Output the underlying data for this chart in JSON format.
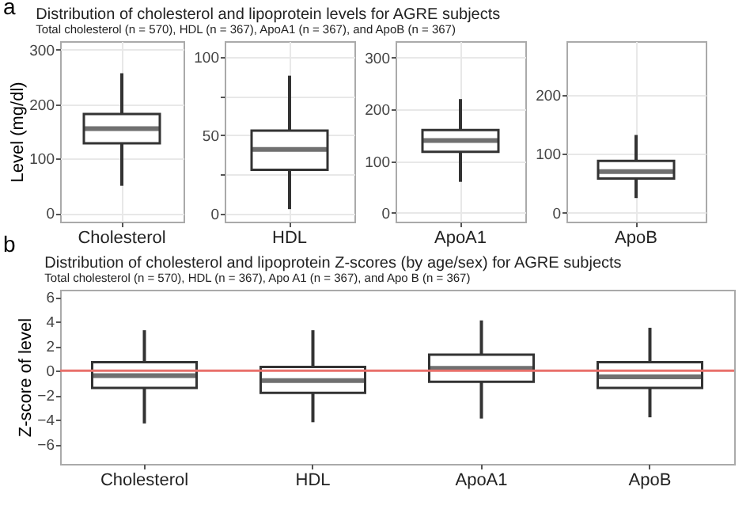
{
  "chart_data": [
    {
      "type": "box",
      "title": "Distribution of cholesterol and lipoprotein levels for AGRE subjects",
      "subtitle": "Total cholesterol (n = 570), HDL (n = 367), ApoA1 (n = 367), and ApoB (n = 367)",
      "annotations": [
        "a"
      ],
      "ylabel": "Level (mg/dl)",
      "categories": [
        "Cholesterol"
      ],
      "ylim": [
        -16,
        316
      ],
      "yticks": [
        0,
        100,
        200,
        300
      ],
      "grid": true,
      "boxes": [
        {
          "low": 50,
          "q1": 128,
          "median": 155,
          "q3": 182,
          "high": 257
        }
      ]
    },
    {
      "type": "box",
      "categories": [
        "HDL"
      ],
      "ylim": [
        -5,
        110
      ],
      "yticks": [
        0,
        {
          "value": 25,
          "label": null
        },
        50,
        {
          "value": 75,
          "label": null
        },
        100
      ],
      "grid": true,
      "boxes": [
        {
          "low": 3,
          "q1": 28,
          "median": 41,
          "q3": 53,
          "high": 88
        }
      ]
    },
    {
      "type": "box",
      "categories": [
        "ApoA1"
      ],
      "ylim": [
        -17,
        332
      ],
      "yticks": [
        0,
        100,
        200,
        300
      ],
      "grid": true,
      "boxes": [
        {
          "low": 60,
          "q1": 118,
          "median": 140,
          "q3": 160,
          "high": 220
        }
      ]
    },
    {
      "type": "box",
      "categories": [
        "ApoB"
      ],
      "ylim": [
        -15,
        291
      ],
      "yticks": [
        0,
        100,
        200
      ],
      "grid": true,
      "boxes": [
        {
          "low": 25,
          "q1": 58,
          "median": 70,
          "q3": 88,
          "high": 132
        }
      ]
    },
    {
      "type": "box",
      "title": "Distribution of cholesterol and lipoprotein Z-scores (by age/sex) for AGRE subjects",
      "subtitle": "Total cholesterol (n = 570), HDL (n = 367), Apo A1 (n = 367), and Apo B (n = 367)",
      "annotations": [
        "b"
      ],
      "ylabel": "Z-score of level",
      "categories": [
        "Cholesterol",
        "HDL",
        "ApoA1",
        "ApoB"
      ],
      "ylim": [
        -7.6,
        6.6
      ],
      "yticks": [
        -6,
        -4,
        -2,
        0,
        2,
        4,
        6
      ],
      "grid": false,
      "boxes": [
        {
          "low": -4.3,
          "q1": -1.4,
          "median": -0.4,
          "q3": 0.7,
          "high": 3.3
        },
        {
          "low": -4.2,
          "q1": -1.8,
          "median": -0.8,
          "q3": 0.3,
          "high": 3.3
        },
        {
          "low": -3.9,
          "q1": -0.9,
          "median": 0.2,
          "q3": 1.3,
          "high": 4.1
        },
        {
          "low": -3.8,
          "q1": -1.4,
          "median": -0.5,
          "q3": 0.7,
          "high": 3.5
        }
      ],
      "ref_lines": [
        {
          "axis": "y",
          "value": 0,
          "color": "#e8706b"
        }
      ]
    }
  ]
}
